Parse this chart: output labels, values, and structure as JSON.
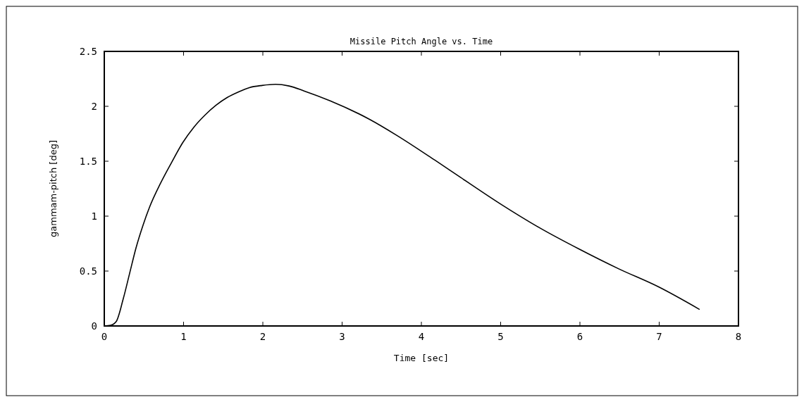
{
  "chart_data": {
    "type": "line",
    "title": "Missile Pitch Angle vs. Time",
    "xlabel": "Time [sec]",
    "ylabel": "gammam-pitch [deg]",
    "xlim": [
      0,
      8
    ],
    "xticks": [
      0,
      1,
      2,
      3,
      4,
      5,
      6,
      7,
      8
    ],
    "ylim": [
      0,
      2.5
    ],
    "yticks": [
      0,
      0.5,
      1,
      1.5,
      2,
      2.5
    ],
    "grid": false,
    "series": [
      {
        "color": "#000000",
        "x": [
          0,
          0.08,
          0.15,
          0.24,
          0.32,
          0.4,
          0.49,
          0.57,
          0.71,
          0.85,
          0.99,
          1.13,
          1.27,
          1.41,
          1.55,
          1.69,
          1.83,
          1.99,
          2.16,
          2.33,
          2.52,
          2.85,
          3.35,
          3.68,
          4.17,
          4.5,
          5.0,
          5.5,
          5.99,
          6.49,
          6.98,
          7.51
        ],
        "values": [
          0,
          0.006,
          0.04,
          0.25,
          0.48,
          0.71,
          0.92,
          1.08,
          1.3,
          1.49,
          1.67,
          1.81,
          1.92,
          2.01,
          2.08,
          2.13,
          2.17,
          2.19,
          2.2,
          2.185,
          2.14,
          2.05,
          1.88,
          1.74,
          1.51,
          1.35,
          1.11,
          0.89,
          0.7,
          0.52,
          0.36,
          0.15
        ]
      }
    ]
  }
}
